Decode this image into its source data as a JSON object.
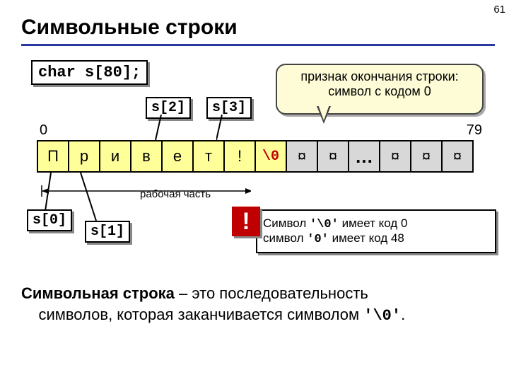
{
  "page": {
    "number": "61"
  },
  "title": "Символьные строки",
  "decl": "char s[80];",
  "indexLabels": {
    "i0": "s[0]",
    "i1": "s[1]",
    "i2": "s[2]",
    "i3": "s[3]"
  },
  "callout": {
    "line1": "признак окончания строки:",
    "line2": "символ с кодом 0"
  },
  "array": {
    "startIndex": "0",
    "endIndex": "79",
    "cells": [
      "П",
      "р",
      "и",
      "в",
      "е",
      "т",
      "!",
      "\\0",
      "¤",
      "¤",
      "…",
      "¤",
      "¤",
      "¤"
    ],
    "nullIndex": 7,
    "grayStart": 8,
    "workingLabel": "рабочая часть"
  },
  "info": {
    "bang": "!",
    "row1_a": "Символ ",
    "row1_b": "'\\0'",
    "row1_c": " имеет код 0",
    "row2_a": "символ  ",
    "row2_b": "'0'",
    "row2_c": " имеет код 48"
  },
  "definition": {
    "bold": "Символьная строка",
    "rest1": " – это последовательность",
    "rest2": "символов, которая заканчивается символом ",
    "sym": "'\\0'",
    "dot": "."
  },
  "colors": {
    "titleLine": "#2838a0",
    "cellBg": "#ffff99",
    "grayBg": "#d8d8d8",
    "nullColor": "#c00000",
    "calloutBg": "#fdfcd6",
    "bangBg": "#c00000"
  }
}
